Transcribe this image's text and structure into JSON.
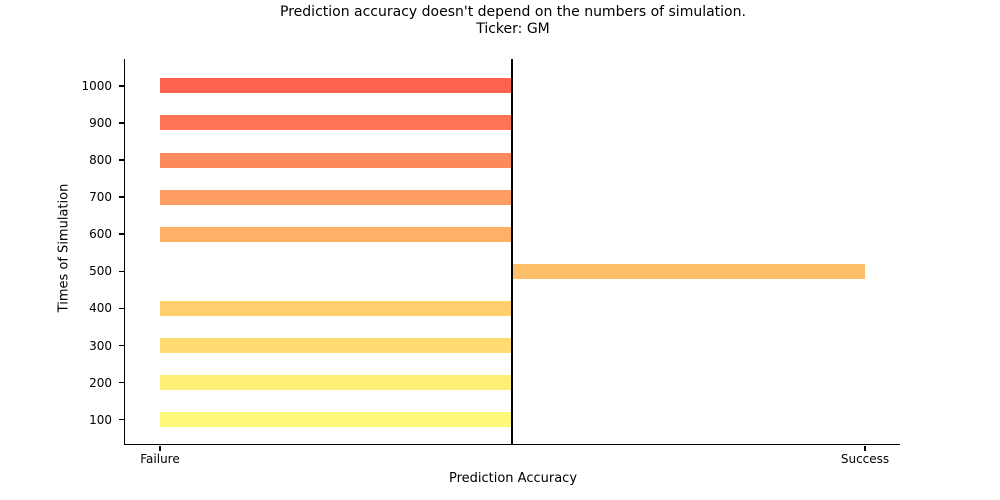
{
  "chart_data": {
    "type": "bar",
    "orientation": "horizontal",
    "title_lines": [
      "Prediction accuracy doesn't depend on the numbers of simulation.",
      "Ticker: GM"
    ],
    "xlabel": "Prediction Accuracy",
    "ylabel": "Times of Simulation",
    "x_tick_labels": [
      "Failure",
      "Success"
    ],
    "categories": [
      "1000",
      "900",
      "800",
      "700",
      "600",
      "500",
      "400",
      "300",
      "200",
      "100"
    ],
    "series": [
      {
        "name": "Prediction Accuracy",
        "values": [
          "Failure",
          "Failure",
          "Failure",
          "Failure",
          "Failure",
          "Success",
          "Failure",
          "Failure",
          "Failure",
          "Failure"
        ]
      }
    ],
    "rows": [
      {
        "label": "1000",
        "value": "Failure",
        "color": "#fd6150"
      },
      {
        "label": "900",
        "value": "Failure",
        "color": "#fd7457"
      },
      {
        "label": "800",
        "value": "Failure",
        "color": "#fd8a5c"
      },
      {
        "label": "700",
        "value": "Failure",
        "color": "#fe9e62"
      },
      {
        "label": "600",
        "value": "Failure",
        "color": "#feb166"
      },
      {
        "label": "500",
        "value": "Success",
        "color": "#ffbf69"
      },
      {
        "label": "400",
        "value": "Failure",
        "color": "#ffce6d"
      },
      {
        "label": "300",
        "value": "Failure",
        "color": "#ffdc71"
      },
      {
        "label": "200",
        "value": "Failure",
        "color": "#ffee76"
      },
      {
        "label": "100",
        "value": "Failure",
        "color": "#fff97b"
      }
    ],
    "grid": false,
    "legend": false,
    "separator_line_color": "#000000",
    "spine_color": "#000000"
  }
}
